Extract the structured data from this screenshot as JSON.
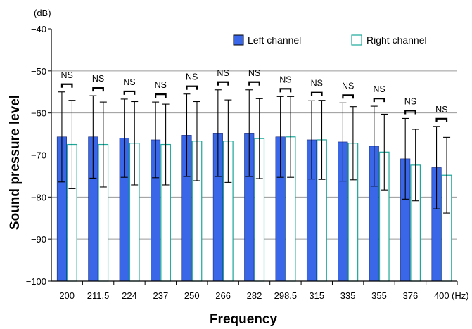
{
  "chart_data": {
    "type": "bar",
    "title": "",
    "xlabel": "Frequency",
    "ylabel": "Sound pressure level",
    "y_unit": "(dB)",
    "x_unit": "(Hz)",
    "ylim": [
      -100,
      -40
    ],
    "yticks": [
      -40,
      -50,
      -60,
      -70,
      -80,
      -90,
      -100
    ],
    "ytick_labels": [
      "−40",
      "−50",
      "−60",
      "−70",
      "−80",
      "−90",
      "−100"
    ],
    "gridlines": [
      -50,
      -60,
      -70,
      -80,
      -90
    ],
    "categories": [
      "200",
      "211.5",
      "224",
      "237",
      "250",
      "266",
      "282",
      "298.5",
      "315",
      "335",
      "355",
      "376",
      "400"
    ],
    "legend_position": "top-right",
    "series": [
      {
        "name": "Left channel",
        "color": "#3a66e8",
        "style": "filled",
        "values": [
          -65.7,
          -65.7,
          -66.0,
          -66.4,
          -65.3,
          -64.8,
          -64.8,
          -65.7,
          -66.4,
          -66.9,
          -67.9,
          -70.9,
          -73.0
        ],
        "error": [
          10.7,
          9.8,
          9.3,
          9.0,
          9.8,
          10.3,
          10.3,
          9.6,
          9.3,
          9.3,
          9.5,
          9.6,
          9.8
        ]
      },
      {
        "name": "Right channel",
        "color": "#1aa89a",
        "style": "outline",
        "values": [
          -67.5,
          -67.5,
          -67.2,
          -67.5,
          -66.7,
          -66.7,
          -66.1,
          -65.7,
          -66.4,
          -67.2,
          -69.3,
          -72.4,
          -74.8
        ],
        "error": [
          10.5,
          10.1,
          9.9,
          9.6,
          9.4,
          9.8,
          9.5,
          9.6,
          9.4,
          8.7,
          9.0,
          8.5,
          9.0
        ]
      }
    ],
    "annotations": [
      "NS",
      "NS",
      "NS",
      "NS",
      "NS",
      "NS",
      "NS",
      "NS",
      "NS",
      "NS",
      "NS",
      "NS",
      "NS"
    ],
    "annotation_style": "bracket"
  }
}
